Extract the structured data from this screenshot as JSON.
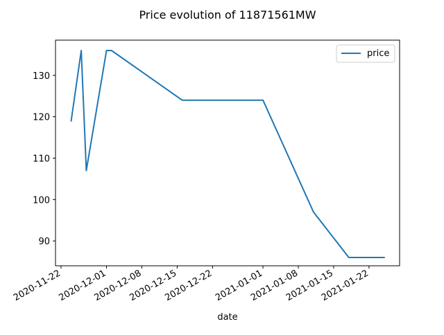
{
  "chart_data": {
    "type": "line",
    "title": "Price evolution of 11871561MW",
    "xlabel": "date",
    "ylabel": "",
    "x_tick_labels": [
      "2020-11-22",
      "2020-12-01",
      "2020-12-08",
      "2020-12-15",
      "2020-12-22",
      "2021-01-01",
      "2021-01-08",
      "2021-01-15",
      "2021-01-22"
    ],
    "y_tick_labels": [
      "90",
      "100",
      "110",
      "120",
      "130"
    ],
    "ylim": [
      84,
      138.5
    ],
    "xlim": [
      "2020-11-22",
      "2021-01-26"
    ],
    "grid": false,
    "legend_position": "top-right",
    "series": [
      {
        "name": "price",
        "color": "#1f77b4",
        "x": [
          "2020-11-24",
          "2020-11-26",
          "2020-11-27",
          "2020-12-01",
          "2020-12-02",
          "2020-12-16",
          "2021-01-01",
          "2021-01-11",
          "2021-01-18",
          "2021-01-25"
        ],
        "y": [
          119,
          136,
          107,
          136,
          136,
          124,
          124,
          97,
          86,
          86
        ]
      }
    ]
  }
}
